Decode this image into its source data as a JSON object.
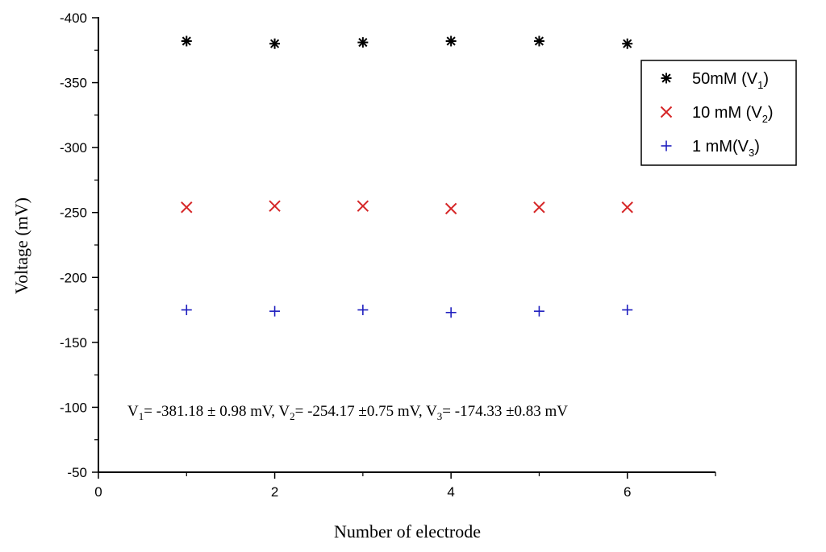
{
  "chart_data": {
    "type": "scatter",
    "title": "",
    "xlabel": "Number of electrode",
    "ylabel": "Voltage (mV)",
    "xlim": [
      0,
      7
    ],
    "ylim": [
      -50,
      -400
    ],
    "y_axis_inverted": true,
    "x_ticks": [
      "0",
      "2",
      "4",
      "6"
    ],
    "y_ticks": [
      "-400",
      "-350",
      "-300",
      "-250",
      "-200",
      "-150",
      "-100",
      "-50"
    ],
    "grid": false,
    "legend_position": "top-right",
    "series": [
      {
        "name": "50mM (V1)",
        "legend_main": "50mM (V",
        "legend_sub": "1",
        "legend_tail": ")",
        "marker": "asterisk",
        "color": "#000000",
        "x": [
          1,
          2,
          3,
          4,
          5,
          6
        ],
        "y": [
          -382,
          -380,
          -381,
          -382,
          -382,
          -380
        ]
      },
      {
        "name": "10 mM (V2)",
        "legend_main": "10 mM (V",
        "legend_sub": "2",
        "legend_tail": ")",
        "marker": "x",
        "color": "#d62728",
        "x": [
          1,
          2,
          3,
          4,
          5,
          6
        ],
        "y": [
          -254,
          -255,
          -255,
          -253,
          -254,
          -254
        ]
      },
      {
        "name": "1 mM(V3)",
        "legend_main": "1 mM(V",
        "legend_sub": "3",
        "legend_tail": ")",
        "marker": "plus",
        "color": "#1f1fbf",
        "x": [
          1,
          2,
          3,
          4,
          5,
          6
        ],
        "y": [
          -175,
          -174,
          -175,
          -173,
          -174,
          -175
        ]
      }
    ],
    "annotation": {
      "parts": [
        {
          "t": "V"
        },
        {
          "t": "1",
          "sub": true
        },
        {
          "t": "= -381.18 ± 0.98 mV, V"
        },
        {
          "t": "2",
          "sub": true
        },
        {
          "t": "= -254.17 ±0.75 mV, V"
        },
        {
          "t": "3",
          "sub": true
        },
        {
          "t": "= -174.33 ±0.83 mV"
        }
      ]
    }
  }
}
